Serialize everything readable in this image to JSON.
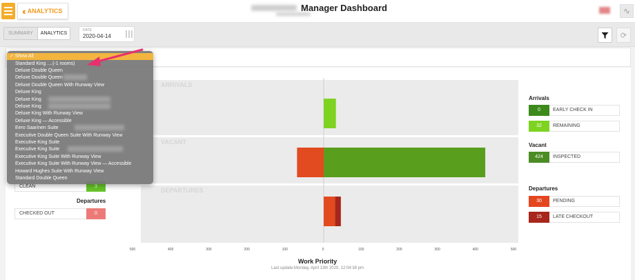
{
  "header": {
    "analytics_label": "ANALYTICS",
    "title": "Manager Dashboard"
  },
  "subbar": {
    "tabs": [
      "SUMMARY",
      "ANALYTICS"
    ],
    "date_label": "DATE",
    "date_value": "2020-04-14"
  },
  "dropdown": {
    "selected": "✓ Show All",
    "items": [
      "Standard King ....(-1 rooms)",
      "Deluxe Double Queen",
      "Deluxe Double Queen",
      "Deluxe Double Queen With Runway View",
      "Deluxe King",
      "Deluxe King",
      "Deluxe King",
      "Deluxe King With Runway View",
      "Deluxe King — Accessible",
      "Eero Saarinen Suite",
      "Executive Double Queen Suite With Runway View",
      "Executive King Suite",
      "Executive King Suite",
      "Executive King Suite With Runway View",
      "Executive King Suite With Runway View — Accessible",
      "Howard Hughes Suite With Runway View",
      "Standard Double Queen"
    ]
  },
  "left_stats": {
    "clean": {
      "label": "CLEAN",
      "value": "3"
    },
    "departures_title": "Departures",
    "checked_out": {
      "label": "CHECKED OUT",
      "value": "0"
    }
  },
  "chart": {
    "bands": [
      "ARRIVALS",
      "VACANT",
      "DEPARTURES"
    ],
    "ticks": [
      "500",
      "400",
      "300",
      "200",
      "100",
      "0",
      "100",
      "200",
      "300",
      "400",
      "500"
    ],
    "title": "Work Priority",
    "last_update": "Last update:Monday, April 13th 2020, 12:04:38 pm"
  },
  "chart_data": {
    "type": "bar",
    "orientation": "horizontal",
    "title": "Work Priority",
    "categories": [
      "ARRIVALS",
      "VACANT",
      "DEPARTURES"
    ],
    "xlim": [
      -500,
      500
    ],
    "series": [
      {
        "name": "ARRIVALS",
        "segments": [
          {
            "value": 32,
            "color": "#7ed321"
          }
        ]
      },
      {
        "name": "VACANT",
        "segments": [
          {
            "value": -70,
            "color": "#e24a1f"
          },
          {
            "value": 424,
            "color": "#5a9e1d"
          }
        ]
      },
      {
        "name": "DEPARTURES",
        "segments": [
          {
            "value": 30,
            "color": "#e24a1f"
          },
          {
            "value": 15,
            "color": "#a8261b"
          }
        ]
      }
    ]
  },
  "right_stats": {
    "arrivals_title": "Arrivals",
    "early_check_in": {
      "label": "EARLY CHECK IN",
      "value": "0",
      "color": "#3d8a1c"
    },
    "remaining": {
      "label": "REMAINING",
      "value": "32",
      "color": "#7ed321"
    },
    "vacant_title": "Vacant",
    "inspected": {
      "label": "INSPECTED",
      "value": "424",
      "color": "#4c8c24"
    },
    "departures_title": "Departures",
    "pending": {
      "label": "PENDING",
      "value": "30",
      "color": "#e4461f"
    },
    "late_checkout": {
      "label": "LATE CHECKOUT",
      "value": "15",
      "color": "#a8261b"
    }
  }
}
